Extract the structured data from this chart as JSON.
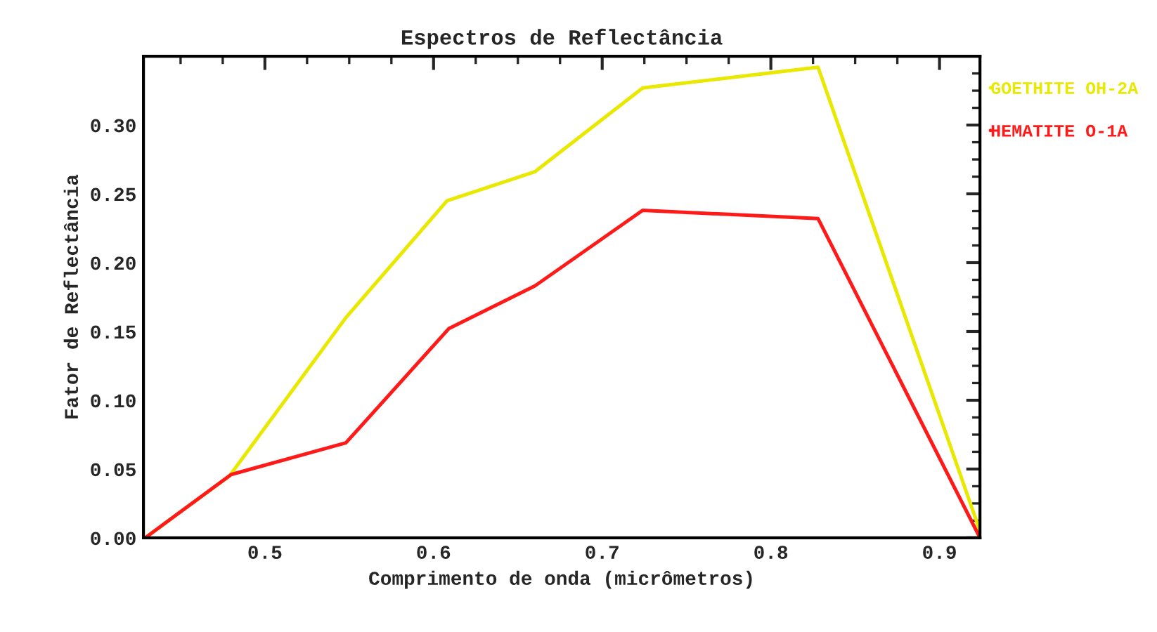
{
  "chart_data": {
    "type": "line",
    "title": "Espectros de Reflectância",
    "xlabel": "Comprimento de onda (micrômetros)",
    "ylabel": "Fator de Reflectância",
    "xlim": [
      0.428,
      0.924
    ],
    "ylim": [
      0,
      0.35
    ],
    "xticks": [
      0.5,
      0.6,
      0.7,
      0.8,
      0.9
    ],
    "yticks": [
      {
        "value": 0,
        "label": "0.00"
      },
      {
        "value": 0.05,
        "label": "0.05"
      },
      {
        "value": 0.1,
        "label": "0.10"
      },
      {
        "value": 0.15,
        "label": "0.15"
      },
      {
        "value": 0.2,
        "label": "0.20"
      },
      {
        "value": 0.25,
        "label": "0.25"
      },
      {
        "value": 0.3,
        "label": "0.30"
      }
    ],
    "grid": false,
    "legend": "right",
    "marker": "none",
    "line_style": "solid",
    "series": [
      {
        "name": "GOETHITE OH-2A",
        "color": "#e8e800",
        "x": [
          0.429,
          0.479,
          0.548,
          0.608,
          0.66,
          0.724,
          0.828,
          0.924
        ],
        "values": [
          0,
          0.045,
          0.16,
          0.245,
          0.266,
          0.327,
          0.342,
          0.005
        ]
      },
      {
        "name": "HEMATITE O-1A",
        "color": "#ff1a1a",
        "x": [
          0.429,
          0.48,
          0.548,
          0.609,
          0.66,
          0.724,
          0.828,
          0.924
        ],
        "values": [
          0,
          0.046,
          0.069,
          0.152,
          0.183,
          0.238,
          0.232,
          0
        ]
      }
    ]
  }
}
